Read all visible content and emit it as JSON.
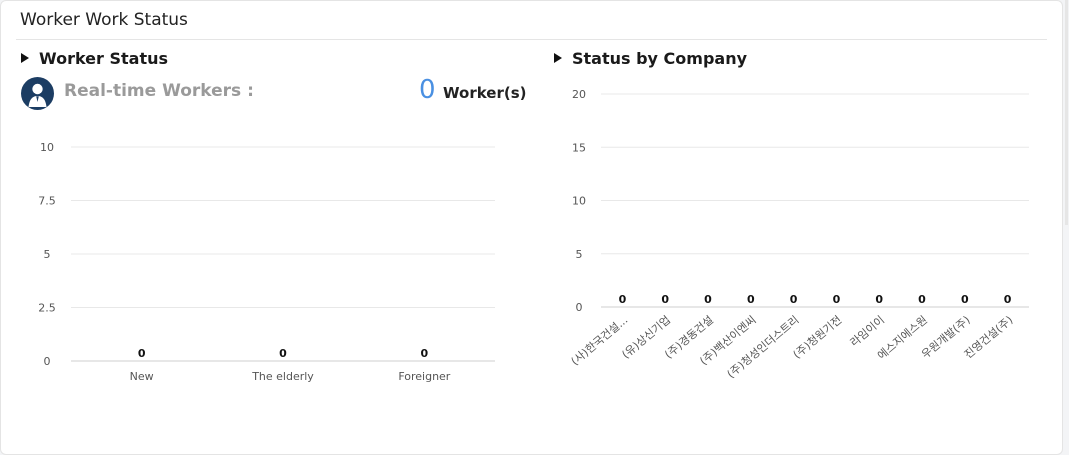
{
  "panel": {
    "title": "Worker Work Status"
  },
  "worker_status": {
    "title": "Worker Status",
    "realtime_label": "Real-time Workers :",
    "realtime_count": "0",
    "realtime_unit": "Worker(s)"
  },
  "company_status": {
    "title": "Status by Company"
  },
  "avatar_icon": "person-avatar-icon",
  "colors": {
    "accent": "#4a90e2",
    "avatar_bg": "#1c3d63",
    "grid": "#e5e5e5"
  },
  "chart_data": [
    {
      "type": "bar",
      "categories": [
        "New",
        "The elderly",
        "Foreigner"
      ],
      "values": [
        0,
        0,
        0
      ],
      "data_labels": [
        "0",
        "0",
        "0"
      ],
      "yticks": [
        "0",
        "2.5",
        "5",
        "7.5",
        "10"
      ],
      "ylim": [
        0,
        10
      ],
      "title": "",
      "xlabel": "",
      "ylabel": "",
      "grid": true
    },
    {
      "type": "bar",
      "categories": [
        "(사)한국건설...",
        "(유)상신기업",
        "(주)경동건설",
        "(주)백산이엔씨",
        "(주)청성인더스트리",
        "(주)청원기전",
        "라임이이",
        "에스지에스원",
        "우원개발(주)",
        "진영건설(주)"
      ],
      "values": [
        0,
        0,
        0,
        0,
        0,
        0,
        0,
        0,
        0,
        0
      ],
      "data_labels": [
        "0",
        "0",
        "0",
        "0",
        "0",
        "0",
        "0",
        "0",
        "0",
        "0"
      ],
      "yticks": [
        "0",
        "5",
        "10",
        "15",
        "20"
      ],
      "ylim": [
        0,
        20
      ],
      "title": "",
      "xlabel": "",
      "ylabel": "",
      "grid": true
    }
  ]
}
